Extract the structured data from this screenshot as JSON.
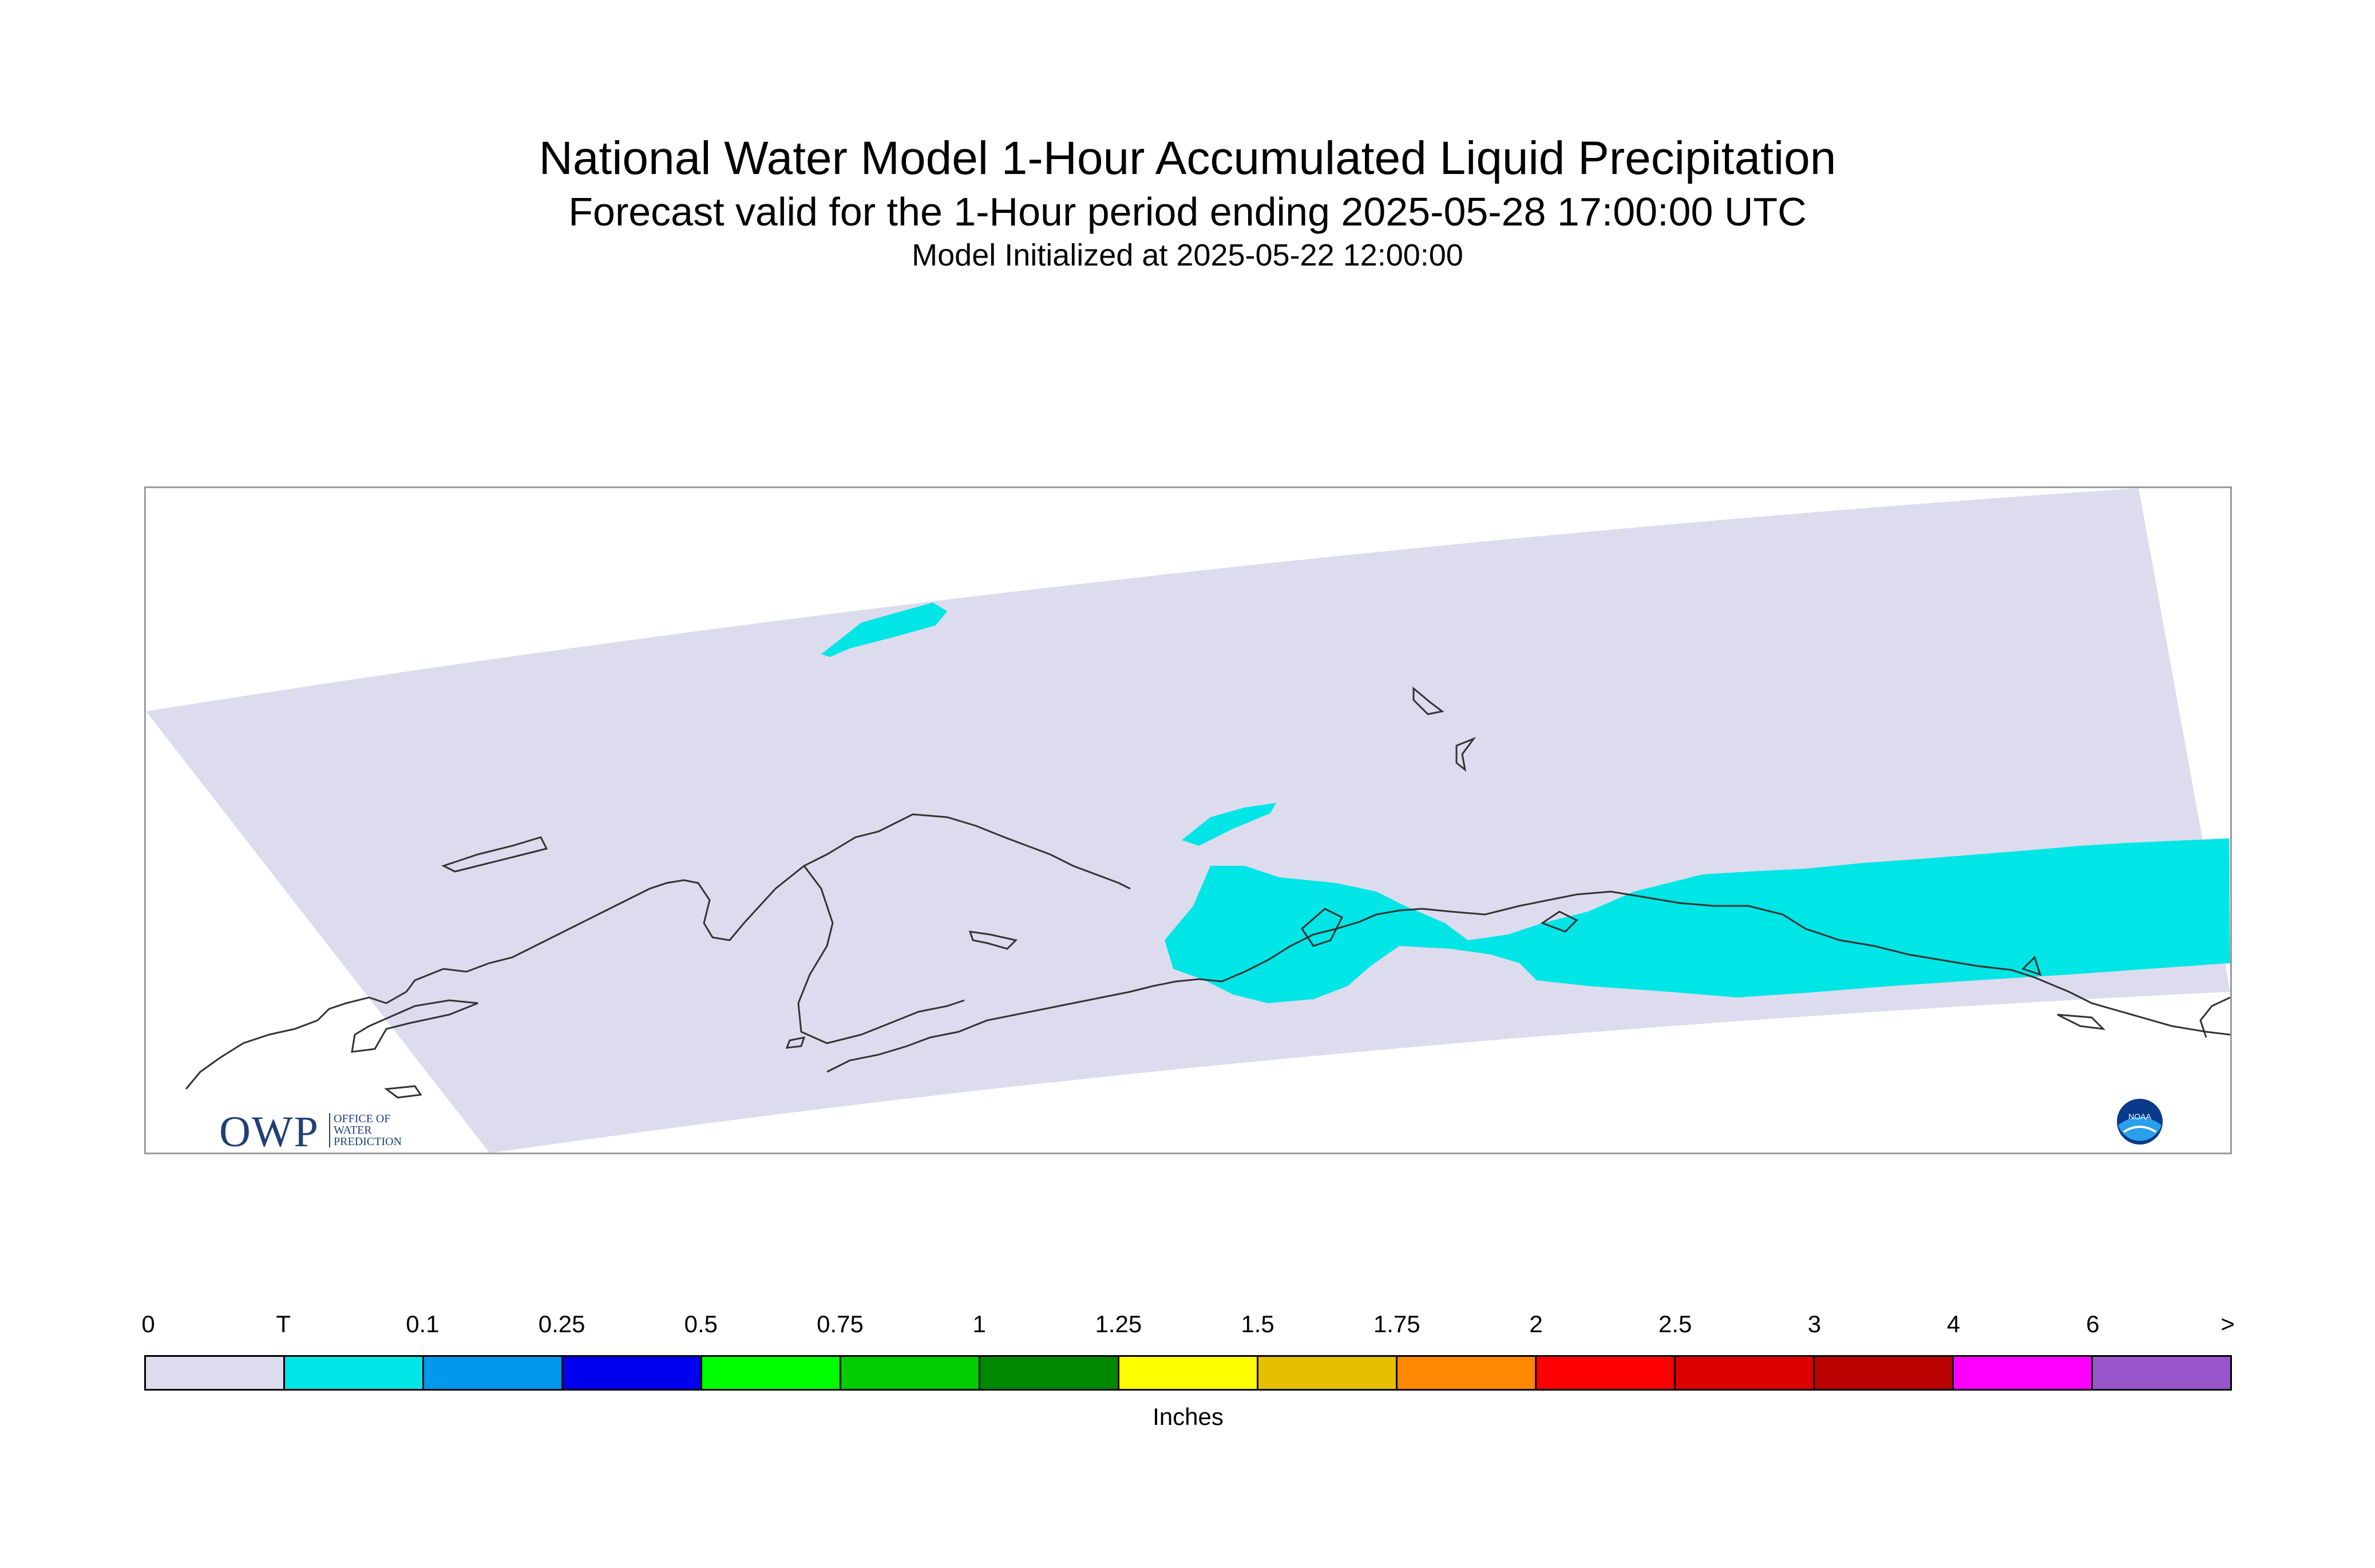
{
  "header": {
    "title": "National Water Model 1-Hour Accumulated Liquid Precipitation",
    "subtitle": "Forecast valid for the 1-Hour period ending 2025-05-28 17:00:00 UTC",
    "init_line": "Model Initialized at 2025-05-22 12:00:00"
  },
  "map": {
    "domain_fill_color": "#dcdcee",
    "precip_trace_color": "#00e5e5",
    "coastline_color": "#333333"
  },
  "logos": {
    "owp_big": "OWP",
    "owp_small_1": "OFFICE OF",
    "owp_small_2": "WATER",
    "owp_small_3": "PREDICTION",
    "noaa": "NOAA"
  },
  "legend": {
    "tick_labels": [
      "0",
      "T",
      "0.1",
      "0.25",
      "0.5",
      "0.75",
      "1",
      "1.25",
      "1.5",
      "1.75",
      "2",
      "2.5",
      "3",
      "4",
      "6",
      ">"
    ],
    "colors": [
      "#dcdcee",
      "#00e5e5",
      "#0099ee",
      "#0000ee",
      "#00ff00",
      "#00cc00",
      "#008800",
      "#ffff00",
      "#e6c000",
      "#ff8800",
      "#ff0000",
      "#dd0000",
      "#bb0000",
      "#ff00ff",
      "#9955cc"
    ],
    "units": "Inches"
  }
}
